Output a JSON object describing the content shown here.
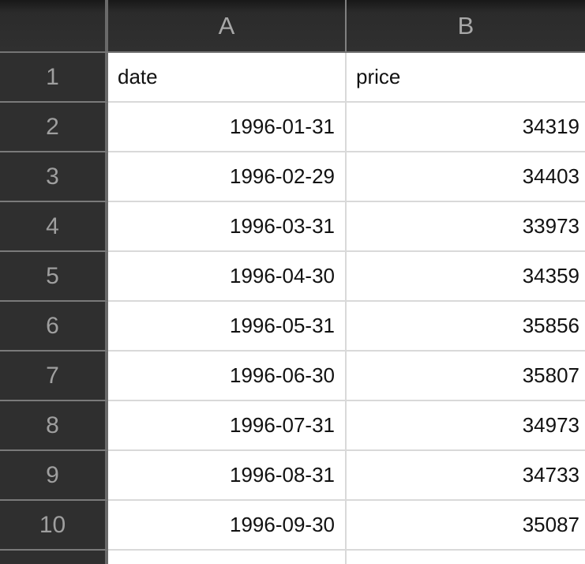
{
  "spreadsheet": {
    "corner_label": "",
    "columns": [
      {
        "label": "A"
      },
      {
        "label": "B"
      }
    ],
    "rows": [
      {
        "num": "1",
        "a": "date",
        "b": "price"
      },
      {
        "num": "2",
        "a": "1996-01-31",
        "b": "34319"
      },
      {
        "num": "3",
        "a": "1996-02-29",
        "b": "34403"
      },
      {
        "num": "4",
        "a": "1996-03-31",
        "b": "33973"
      },
      {
        "num": "5",
        "a": "1996-04-30",
        "b": "34359"
      },
      {
        "num": "6",
        "a": "1996-05-31",
        "b": "35856"
      },
      {
        "num": "7",
        "a": "1996-06-30",
        "b": "35807"
      },
      {
        "num": "8",
        "a": "1996-07-31",
        "b": "34973"
      },
      {
        "num": "9",
        "a": "1996-08-31",
        "b": "34733"
      },
      {
        "num": "10",
        "a": "1996-09-30",
        "b": "35087"
      }
    ],
    "colors": {
      "header_background": "#2f2f2f",
      "header_text": "#a8a8a8",
      "row_number_text": "#9f9f9f",
      "cell_background": "#ffffff",
      "cell_text": "#111111",
      "gridline_light": "#d9d9d9",
      "gridline_dark": "#757575"
    }
  }
}
